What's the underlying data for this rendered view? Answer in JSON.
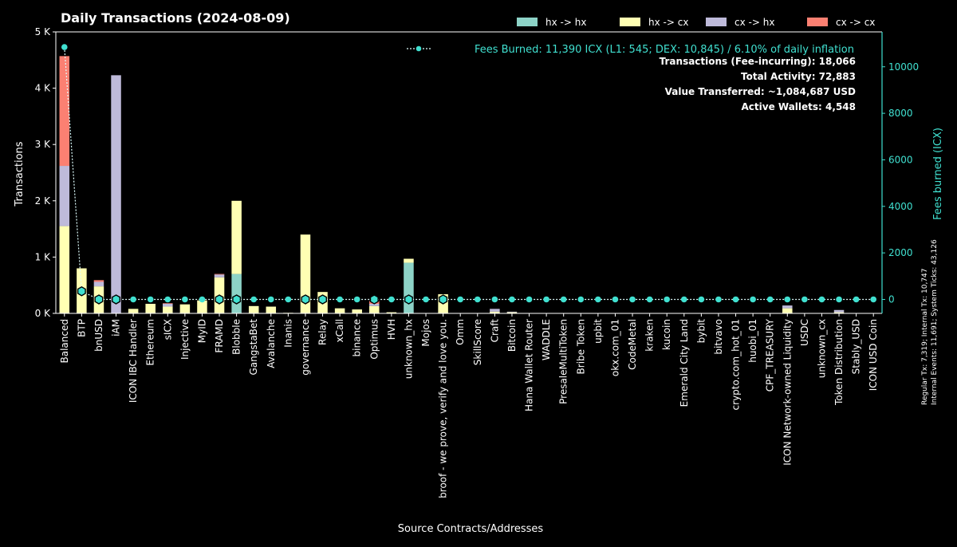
{
  "colors": {
    "hx_hx": "#8dd3c7",
    "hx_cx": "#ffffb3",
    "cx_hx": "#bebada",
    "cx_cx": "#fb8072",
    "fees": "#40e0d0",
    "axis": "#ffffff",
    "background": "#000000"
  },
  "chart_data": {
    "type": "bar",
    "stacked": true,
    "title": "Daily Transactions (2024-08-09)",
    "xlabel": "Source Contracts/Addresses",
    "ylabel": "Transactions",
    "y2label": "Fees burned (ICX)",
    "ylim": [
      0,
      5000
    ],
    "y2lim": [
      -600,
      11500
    ],
    "yticks": [
      {
        "value": 0,
        "label": "0 K"
      },
      {
        "value": 1000,
        "label": "1 K"
      },
      {
        "value": 2000,
        "label": "2 K"
      },
      {
        "value": 3000,
        "label": "3 K"
      },
      {
        "value": 4000,
        "label": "4 K"
      },
      {
        "value": 5000,
        "label": "5 K"
      }
    ],
    "y2ticks": [
      {
        "value": 0,
        "label": "0"
      },
      {
        "value": 2000,
        "label": "2000"
      },
      {
        "value": 4000,
        "label": "4000"
      },
      {
        "value": 6000,
        "label": "6000"
      },
      {
        "value": 8000,
        "label": "8000"
      },
      {
        "value": 10000,
        "label": "10000"
      }
    ],
    "legend_position": "top-right",
    "grid": false,
    "categories": [
      "Balanced",
      "BTP",
      "bnUSD",
      "iAM",
      "ICON IBC Handler",
      "Ethereum",
      "sICX",
      "Injective",
      "MyID",
      "FRAMD",
      "Blobble",
      "GangstaBet",
      "Avalanche",
      "Inanis",
      "governance",
      "Relay",
      "xCall",
      "binance",
      "Optimus",
      "HVH",
      "unknown_hx",
      "Mojos",
      "broof - we prove, verify and love you.",
      "Omm",
      "SkillScore",
      "Craft",
      "Bitcoin",
      "Hana Wallet Router",
      "WADDLE",
      "PresaleMultiToken",
      "Bribe Token",
      "upbit",
      "okx.com_01",
      "CodeMetal",
      "kraken",
      "kucoin",
      "Emerald City Land",
      "bybit",
      "bitvavo",
      "crypto.com_hot_01",
      "huobi_01",
      "CPF_TREASURY",
      "ICON Network-owned Liquidity",
      "USDC",
      "unknown_cx",
      "Token Distribution",
      "Stably_USD",
      "ICON USD Coin"
    ],
    "series": [
      {
        "name": "hx -> hx",
        "color_key": "hx_hx",
        "values": [
          0,
          0,
          0,
          0,
          0,
          0,
          0,
          0,
          0,
          0,
          700,
          0,
          0,
          0,
          0,
          0,
          0,
          0,
          0,
          0,
          900,
          0,
          0,
          0,
          0,
          0,
          0,
          0,
          0,
          0,
          0,
          0,
          0,
          0,
          0,
          0,
          0,
          0,
          0,
          0,
          0,
          0,
          0,
          0,
          0,
          0,
          0,
          0
        ]
      },
      {
        "name": "hx -> cx",
        "color_key": "hx_cx",
        "values": [
          1550,
          800,
          480,
          0,
          80,
          170,
          120,
          160,
          230,
          640,
          1300,
          130,
          120,
          10,
          1400,
          380,
          90,
          70,
          130,
          20,
          70,
          0,
          340,
          0,
          0,
          30,
          20,
          0,
          0,
          0,
          0,
          0,
          0,
          0,
          0,
          0,
          0,
          0,
          0,
          0,
          0,
          0,
          90,
          0,
          0,
          20,
          0,
          0
        ]
      },
      {
        "name": "cx -> hx",
        "color_key": "cx_hx",
        "values": [
          1070,
          0,
          80,
          4230,
          0,
          0,
          50,
          0,
          0,
          50,
          0,
          0,
          0,
          0,
          0,
          0,
          0,
          0,
          40,
          0,
          0,
          0,
          0,
          0,
          0,
          50,
          10,
          0,
          0,
          0,
          0,
          0,
          0,
          0,
          0,
          0,
          0,
          0,
          0,
          0,
          0,
          0,
          50,
          0,
          0,
          40,
          0,
          0
        ]
      },
      {
        "name": "cx -> cx",
        "color_key": "cx_cx",
        "values": [
          1950,
          0,
          30,
          0,
          0,
          0,
          10,
          0,
          0,
          10,
          0,
          0,
          0,
          0,
          0,
          0,
          0,
          0,
          50,
          0,
          0,
          0,
          0,
          0,
          0,
          0,
          0,
          0,
          0,
          0,
          0,
          0,
          0,
          0,
          0,
          0,
          0,
          0,
          0,
          0,
          0,
          0,
          0,
          0,
          0,
          0,
          0,
          0
        ]
      }
    ],
    "fees_series": {
      "name": "Fees Burned: 11,390 ICX (L1: 545; DEX: 10,845) / 6.10% of daily inflation",
      "values": [
        10845,
        350,
        0,
        0,
        0,
        0,
        0,
        0,
        0,
        0,
        0,
        0,
        0,
        0,
        0,
        0,
        0,
        0,
        0,
        0,
        0,
        0,
        0,
        0,
        0,
        0,
        0,
        0,
        0,
        0,
        0,
        0,
        0,
        0,
        0,
        0,
        0,
        0,
        0,
        0,
        0,
        0,
        0,
        0,
        0,
        0,
        0,
        0
      ],
      "hexagon_markers": [
        1,
        2,
        3,
        9,
        10,
        14,
        15,
        18,
        20,
        22
      ]
    },
    "annotations": [
      "Transactions (Fee-incurring): 18,066",
      "Total Activity: 72,883",
      "Value Transferred: ~1,084,687 USD",
      "Active Wallets: 4,548"
    ],
    "side_note": [
      "Regular Tx: 7,319; Internal Tx: 10,747",
      "Internal Events: 11,691; System Ticks: 43,126"
    ]
  }
}
